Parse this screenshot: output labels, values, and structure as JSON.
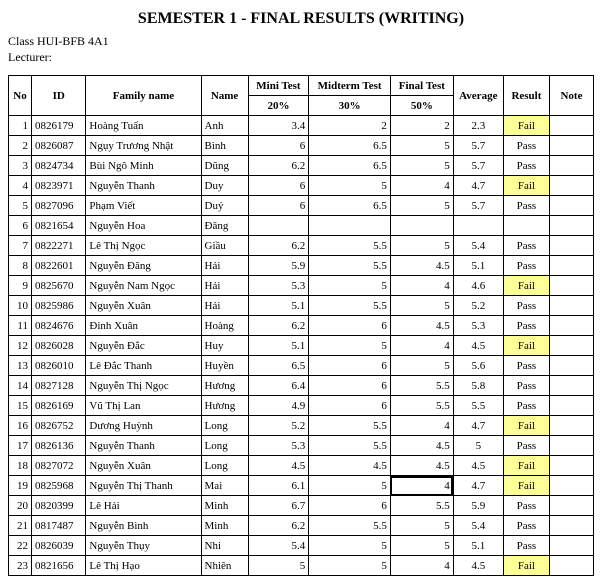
{
  "title": "SEMESTER 1 - FINAL RESULTS (WRITING)",
  "class_label": "Class HUI-BFB 4A1",
  "lecturer_label": "Lecturer:",
  "colors": {
    "fail_bg": "#ffff99",
    "border": "#000000",
    "background": "#ffffff",
    "text": "#000000"
  },
  "headers": {
    "no": "No",
    "id": "ID",
    "family": "Family name",
    "name": "Name",
    "mini_top": "Mini Test",
    "mini_bot": "20%",
    "mid_top": "Midterm Test",
    "mid_bot": "30%",
    "final_top": "Final Test",
    "final_bot": "50%",
    "avg": "Average",
    "result": "Result",
    "note": "Note"
  },
  "selected_cell": {
    "row": 19,
    "col": "final"
  },
  "rows": [
    {
      "no": 1,
      "id": "0826179",
      "family": "Hoàng Tuấn",
      "name": "Anh",
      "mini": "3.4",
      "mid": "2",
      "final": "2",
      "avg": "2.3",
      "result": "Fail",
      "note": ""
    },
    {
      "no": 2,
      "id": "0826087",
      "family": "Ngụy Trương Nhật",
      "name": "Bình",
      "mini": "6",
      "mid": "6.5",
      "final": "5",
      "avg": "5.7",
      "result": "Pass",
      "note": ""
    },
    {
      "no": 3,
      "id": "0824734",
      "family": "Bùi Ngô Minh",
      "name": "Dũng",
      "mini": "6.2",
      "mid": "6.5",
      "final": "5",
      "avg": "5.7",
      "result": "Pass",
      "note": ""
    },
    {
      "no": 4,
      "id": "0823971",
      "family": "Nguyễn Thanh",
      "name": "Duy",
      "mini": "6",
      "mid": "5",
      "final": "4",
      "avg": "4.7",
      "result": "Fail",
      "note": ""
    },
    {
      "no": 5,
      "id": "0827096",
      "family": "Phạm Viết",
      "name": "Duý",
      "mini": "6",
      "mid": "6.5",
      "final": "5",
      "avg": "5.7",
      "result": "Pass",
      "note": ""
    },
    {
      "no": 6,
      "id": "0821654",
      "family": "Nguyễn Hoa",
      "name": "Đăng",
      "mini": "",
      "mid": "",
      "final": "",
      "avg": "",
      "result": "",
      "note": ""
    },
    {
      "no": 7,
      "id": "0822271",
      "family": "Lê Thị Ngọc",
      "name": "Giầu",
      "mini": "6.2",
      "mid": "5.5",
      "final": "5",
      "avg": "5.4",
      "result": "Pass",
      "note": ""
    },
    {
      "no": 8,
      "id": "0822601",
      "family": "Nguyễn Đăng",
      "name": "Hải",
      "mini": "5.9",
      "mid": "5.5",
      "final": "4.5",
      "avg": "5.1",
      "result": "Pass",
      "note": ""
    },
    {
      "no": 9,
      "id": "0825670",
      "family": "Nguyễn Nam Ngọc",
      "name": "Hải",
      "mini": "5.3",
      "mid": "5",
      "final": "4",
      "avg": "4.6",
      "result": "Fail",
      "note": ""
    },
    {
      "no": 10,
      "id": "0825986",
      "family": "Nguyễn Xuân",
      "name": "Hải",
      "mini": "5.1",
      "mid": "5.5",
      "final": "5",
      "avg": "5.2",
      "result": "Pass",
      "note": ""
    },
    {
      "no": 11,
      "id": "0824676",
      "family": "Đinh Xuân",
      "name": "Hoàng",
      "mini": "6.2",
      "mid": "6",
      "final": "4.5",
      "avg": "5.3",
      "result": "Pass",
      "note": ""
    },
    {
      "no": 12,
      "id": "0826028",
      "family": "Nguyễn Đắc",
      "name": "Huy",
      "mini": "5.1",
      "mid": "5",
      "final": "4",
      "avg": "4.5",
      "result": "Fail",
      "note": ""
    },
    {
      "no": 13,
      "id": "0826010",
      "family": "Lê Đắc Thanh",
      "name": "Huyền",
      "mini": "6.5",
      "mid": "6",
      "final": "5",
      "avg": "5.6",
      "result": "Pass",
      "note": ""
    },
    {
      "no": 14,
      "id": "0827128",
      "family": "Nguyễn Thị Ngọc",
      "name": "Hương",
      "mini": "6.4",
      "mid": "6",
      "final": "5.5",
      "avg": "5.8",
      "result": "Pass",
      "note": ""
    },
    {
      "no": 15,
      "id": "0826169",
      "family": "Vũ Thị Lan",
      "name": "Hương",
      "mini": "4.9",
      "mid": "6",
      "final": "5.5",
      "avg": "5.5",
      "result": "Pass",
      "note": ""
    },
    {
      "no": 16,
      "id": "0826752",
      "family": "Dương Huỳnh",
      "name": "Long",
      "mini": "5.2",
      "mid": "5.5",
      "final": "4",
      "avg": "4.7",
      "result": "Fail",
      "note": ""
    },
    {
      "no": 17,
      "id": "0826136",
      "family": "Nguyễn Thanh",
      "name": "Long",
      "mini": "5.3",
      "mid": "5.5",
      "final": "4.5",
      "avg": "5",
      "result": "Pass",
      "note": ""
    },
    {
      "no": 18,
      "id": "0827072",
      "family": "Nguyễn Xuân",
      "name": "Long",
      "mini": "4.5",
      "mid": "4.5",
      "final": "4.5",
      "avg": "4.5",
      "result": "Fail",
      "note": ""
    },
    {
      "no": 19,
      "id": "0825968",
      "family": "Nguyễn Thị Thanh",
      "name": "Mai",
      "mini": "6.1",
      "mid": "5",
      "final": "4",
      "avg": "4.7",
      "result": "Fail",
      "note": ""
    },
    {
      "no": 20,
      "id": "0820399",
      "family": "Lê Hải",
      "name": "Minh",
      "mini": "6.7",
      "mid": "6",
      "final": "5.5",
      "avg": "5.9",
      "result": "Pass",
      "note": ""
    },
    {
      "no": 21,
      "id": "0817487",
      "family": "Nguyễn Bình",
      "name": "Minh",
      "mini": "6.2",
      "mid": "5.5",
      "final": "5",
      "avg": "5.4",
      "result": "Pass",
      "note": ""
    },
    {
      "no": 22,
      "id": "0826039",
      "family": "Nguyễn Thụy",
      "name": "Nhi",
      "mini": "5.4",
      "mid": "5",
      "final": "5",
      "avg": "5.1",
      "result": "Pass",
      "note": ""
    },
    {
      "no": 23,
      "id": "0821656",
      "family": "Lê Thị Hạo",
      "name": "Nhiên",
      "mini": "5",
      "mid": "5",
      "final": "4",
      "avg": "4.5",
      "result": "Fail",
      "note": ""
    }
  ]
}
